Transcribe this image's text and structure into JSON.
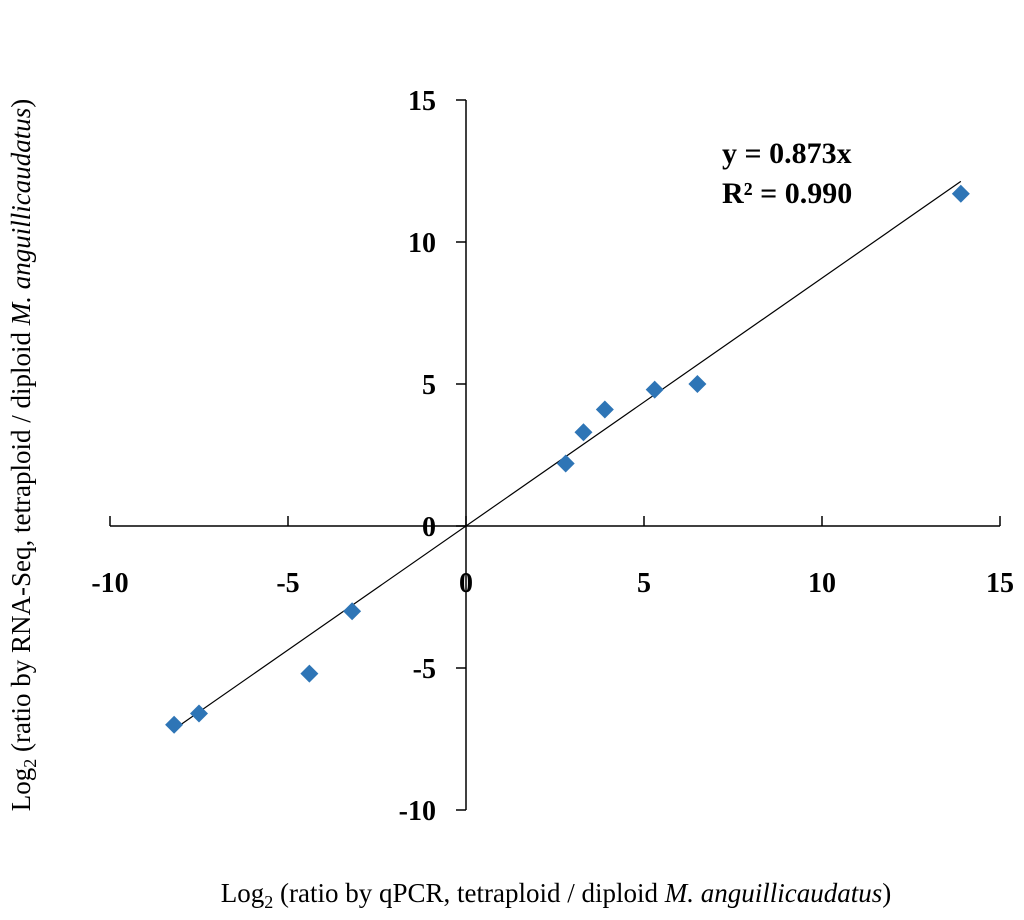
{
  "chart_data": {
    "type": "scatter",
    "title": "",
    "xlabel_parts": {
      "prefix": "Log",
      "sub": "2",
      "middle": " (ratio by qPCR, tetraploid / diploid ",
      "species": "M. anguillicaudatus",
      "suffix": ")"
    },
    "ylabel_parts": {
      "prefix": "Log",
      "sub": "2",
      "middle": " (ratio by RNA-Seq, tetraploid / diploid ",
      "species": "M. anguillicaudatus",
      "suffix": ")"
    },
    "xlim": [
      -10,
      15
    ],
    "ylim": [
      -10,
      15
    ],
    "x_ticks": [
      -10,
      -5,
      0,
      5,
      10,
      15
    ],
    "y_ticks": [
      -10,
      -5,
      0,
      5,
      10,
      15
    ],
    "grid": false,
    "legend": "none",
    "marker": "diamond",
    "marker_color": "#2E75B6",
    "points": [
      {
        "x": -8.2,
        "y": -7.0
      },
      {
        "x": -7.5,
        "y": -6.6
      },
      {
        "x": -4.4,
        "y": -5.2
      },
      {
        "x": -3.2,
        "y": -3.0
      },
      {
        "x": 2.8,
        "y": 2.2
      },
      {
        "x": 3.3,
        "y": 3.3
      },
      {
        "x": 3.9,
        "y": 4.1
      },
      {
        "x": 5.3,
        "y": 4.8
      },
      {
        "x": 6.5,
        "y": 5.0
      },
      {
        "x": 13.9,
        "y": 11.7
      }
    ],
    "trendline": {
      "slope": 0.873,
      "x_range": [
        -8.2,
        13.9
      ],
      "color": "#000000"
    },
    "annotations": {
      "equation": "y = 0.873x",
      "r_squared": "R² = 0.990"
    }
  }
}
